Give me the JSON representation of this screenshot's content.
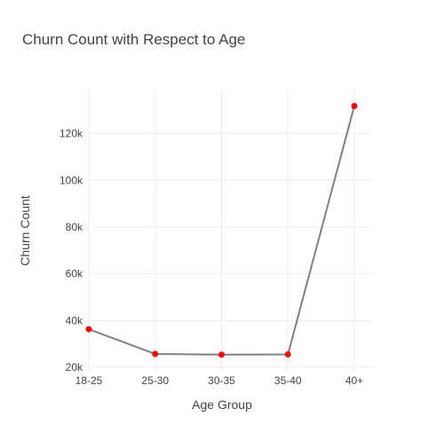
{
  "chart_data": {
    "type": "line",
    "title": "Churn Count with Respect to Age",
    "xlabel": "Age Group",
    "ylabel": "Churn Count",
    "categories": [
      "18-25",
      "25-30",
      "30-35",
      "35-40",
      "40+"
    ],
    "series": [
      {
        "values": [
          36300,
          25700,
          25400,
          25500,
          131800
        ]
      }
    ],
    "ylim": [
      20000,
      140000
    ],
    "yticks": [
      20000,
      40000,
      60000,
      80000,
      100000,
      120000
    ],
    "ytick_labels": [
      "20k",
      "40k",
      "60k",
      "80k",
      "100k",
      "120k"
    ],
    "grid": true,
    "colors": {
      "line": "#808080",
      "marker": "#ff0000",
      "grid": "#eeeeee",
      "text": "#444444",
      "background": "#ffffff"
    }
  }
}
